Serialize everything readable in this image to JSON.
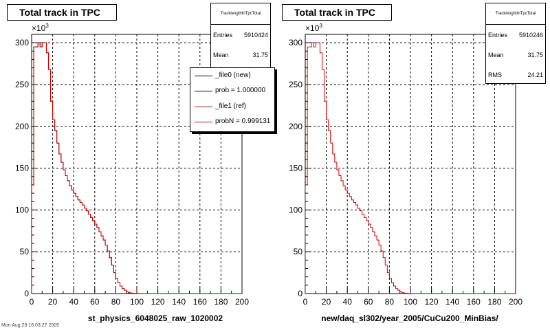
{
  "chart_data": [
    {
      "type": "line",
      "title": "Total track in TPC",
      "xlabel": "st_physics_6048025_raw_1020002",
      "ylabel": "",
      "y_exponent": "3",
      "xlim": [
        0,
        200
      ],
      "ylim": [
        0,
        310
      ],
      "x_ticks": [
        0,
        20,
        40,
        60,
        80,
        100,
        120,
        140,
        160,
        180,
        200
      ],
      "y_ticks": [
        0,
        50,
        100,
        150,
        200,
        250,
        300
      ],
      "grid": true,
      "stats": {
        "name": "TracklengthInTpcTotal",
        "rows": [
          {
            "key": "Entries",
            "value": "5910424"
          },
          {
            "key": "Mean",
            "value": "31.75"
          }
        ]
      },
      "legend": {
        "placement": "top-right",
        "entries": [
          {
            "label": "_file0 (new)",
            "color": "#000000"
          },
          {
            "label": "prob = 1.000000",
            "color": "#000000"
          },
          {
            "label": "_file1 (ref)",
            "color": "#cc0000"
          },
          {
            "label": "probN = 0.999131",
            "color": "#cc0000"
          }
        ]
      },
      "series": [
        {
          "name": "_file0 (new)",
          "color": "#000000",
          "values": [
            130,
            295,
            295,
            300,
            295,
            300,
            300,
            288,
            268,
            230,
            208,
            195,
            180,
            167,
            157,
            148,
            141,
            135,
            129,
            124,
            120,
            116,
            112,
            109,
            106,
            102,
            99,
            95,
            91,
            87,
            83,
            79,
            74,
            69,
            64,
            58,
            51,
            43,
            34,
            25,
            18,
            13,
            9,
            6,
            4,
            2,
            1,
            0.5,
            0.3,
            0.2,
            0.1
          ]
        },
        {
          "name": "_file1 (ref)",
          "color": "#cc0000",
          "values": [
            130,
            295,
            295,
            300,
            295,
            300,
            300,
            288,
            268,
            230,
            208,
            195,
            180,
            167,
            157,
            148,
            141,
            135,
            129,
            124,
            120,
            116,
            112,
            109,
            106,
            102,
            99,
            95,
            91,
            87,
            83,
            79,
            74,
            69,
            64,
            58,
            51,
            43,
            34,
            25,
            18,
            13,
            9,
            6,
            4,
            2,
            1,
            0.5,
            0.3,
            0.2,
            0.1
          ]
        }
      ],
      "x_bin_start": 0,
      "x_bin_width": 2
    },
    {
      "type": "line",
      "title": "Total track in TPC",
      "xlabel": "new/daq_sl302/year_2005/CuCu200_MinBias/",
      "ylabel": "",
      "y_exponent": "3",
      "xlim": [
        0,
        200
      ],
      "ylim": [
        0,
        310
      ],
      "x_ticks": [
        0,
        20,
        40,
        60,
        80,
        100,
        120,
        140,
        160,
        180,
        200
      ],
      "y_ticks": [
        0,
        50,
        100,
        150,
        200,
        250,
        300
      ],
      "grid": true,
      "stats": {
        "name": "TracklengthInTpcTotal",
        "rows": [
          {
            "key": "Entries",
            "value": "5910246"
          },
          {
            "key": "Mean",
            "value": "31.75"
          },
          {
            "key": "RMS",
            "value": "24.21"
          }
        ]
      },
      "series": [
        {
          "name": "",
          "color": "#cc0000",
          "values": [
            130,
            295,
            295,
            300,
            295,
            300,
            300,
            288,
            268,
            230,
            208,
            195,
            180,
            167,
            157,
            148,
            141,
            135,
            129,
            124,
            120,
            116,
            112,
            109,
            106,
            102,
            99,
            95,
            91,
            87,
            83,
            79,
            74,
            69,
            64,
            58,
            51,
            43,
            34,
            25,
            18,
            13,
            9,
            6,
            4,
            2,
            1,
            0.5,
            0.3,
            0.2,
            0.1
          ]
        }
      ],
      "x_bin_start": 0,
      "x_bin_width": 2
    }
  ],
  "footer": "Mon Aug 29 16:03:27 2005"
}
